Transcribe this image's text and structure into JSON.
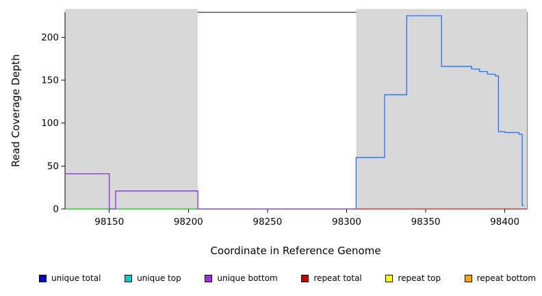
{
  "chart_data": {
    "type": "line",
    "title": "",
    "xlabel": "Coordinate in Reference Genome",
    "ylabel": "Read Coverage Depth",
    "xlim": [
      98122,
      98414
    ],
    "ylim": [
      0,
      229
    ],
    "x_ticks": [
      98150,
      98200,
      98250,
      98300,
      98350,
      98400
    ],
    "y_ticks": [
      0,
      50,
      100,
      150,
      200
    ],
    "grid": false,
    "background": "#ffffff",
    "region_color": "#d8d8d8",
    "shaded_regions": [
      {
        "x0": 98122,
        "x1": 98206
      },
      {
        "x0": 98306,
        "x1": 98414
      }
    ],
    "series": [
      {
        "name": "unique top",
        "color": "#00CD00",
        "points": [
          [
            98122,
            0
          ],
          [
            98306,
            0
          ]
        ]
      },
      {
        "name": "repeat total",
        "color": "#E01010",
        "points": [
          [
            98306,
            0
          ],
          [
            98414,
            0
          ]
        ]
      },
      {
        "name": "unique bottom",
        "color": "#8A2BE2",
        "points": [
          [
            98122,
            41
          ],
          [
            98150,
            41
          ],
          [
            98150,
            0
          ],
          [
            98154,
            0
          ],
          [
            98154,
            21
          ],
          [
            98206,
            21
          ],
          [
            98206,
            0
          ],
          [
            98306,
            0
          ]
        ]
      },
      {
        "name": "unique total",
        "color": "#1E6FFF",
        "points": [
          [
            98306,
            0
          ],
          [
            98306,
            60
          ],
          [
            98324,
            60
          ],
          [
            98324,
            133
          ],
          [
            98338,
            133
          ],
          [
            98338,
            225
          ],
          [
            98360,
            225
          ],
          [
            98360,
            166
          ],
          [
            98379,
            166
          ],
          [
            98379,
            163
          ],
          [
            98384,
            163
          ],
          [
            98384,
            160
          ],
          [
            98389,
            160
          ],
          [
            98389,
            157
          ],
          [
            98394,
            157
          ],
          [
            98394,
            155
          ],
          [
            98396,
            155
          ],
          [
            98396,
            90
          ],
          [
            98400,
            90
          ],
          [
            98400,
            89
          ],
          [
            98409,
            89
          ],
          [
            98409,
            87
          ],
          [
            98411,
            87
          ],
          [
            98411,
            4
          ],
          [
            98412,
            4
          ]
        ]
      }
    ]
  },
  "legend": {
    "items": [
      {
        "label": "unique total",
        "color": "#0000CD"
      },
      {
        "label": "unique top",
        "color": "#00CDCD"
      },
      {
        "label": "unique bottom",
        "color": "#9B30D9"
      },
      {
        "label": "repeat total",
        "color": "#CD0000"
      },
      {
        "label": "repeat top",
        "color": "#FFFF00"
      },
      {
        "label": "repeat bottom",
        "color": "#FFA500"
      }
    ]
  }
}
